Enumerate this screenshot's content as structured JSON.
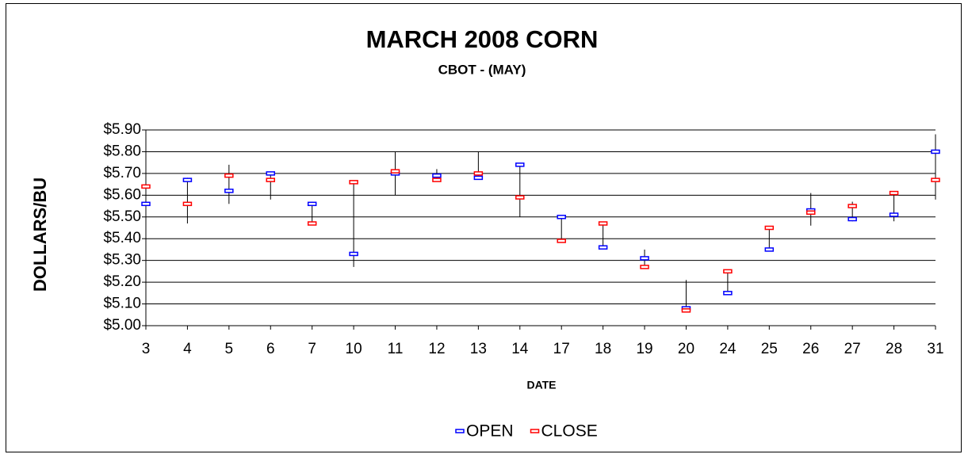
{
  "chart_data": {
    "type": "hloc",
    "title": "MARCH 2008 CORN",
    "subtitle": "CBOT - (MAY)",
    "y_label": "DOLLARS/BU",
    "x_label": "DATE",
    "categories": [
      "3",
      "4",
      "5",
      "6",
      "7",
      "10",
      "11",
      "12",
      "13",
      "14",
      "17",
      "18",
      "19",
      "20",
      "24",
      "25",
      "26",
      "27",
      "28",
      "31"
    ],
    "series": [
      {
        "name": "OPEN",
        "color": "#0000ff",
        "values": [
          5.56,
          5.67,
          5.62,
          5.7,
          5.56,
          5.33,
          5.7,
          5.69,
          5.68,
          5.74,
          5.5,
          5.36,
          5.31,
          5.08,
          5.15,
          5.35,
          5.53,
          5.49,
          5.51,
          5.8
        ]
      },
      {
        "name": "CLOSE",
        "color": "#ff0000",
        "values": [
          5.64,
          5.56,
          5.69,
          5.67,
          5.47,
          5.66,
          5.71,
          5.67,
          5.7,
          5.59,
          5.39,
          5.47,
          5.27,
          5.07,
          5.25,
          5.45,
          5.52,
          5.55,
          5.61,
          5.67
        ]
      }
    ],
    "high": [
      5.64,
      5.68,
      5.74,
      5.7,
      5.57,
      5.66,
      5.8,
      5.72,
      5.8,
      5.74,
      5.5,
      5.47,
      5.35,
      5.21,
      5.25,
      5.45,
      5.61,
      5.57,
      5.61,
      5.88
    ],
    "low": [
      5.56,
      5.47,
      5.56,
      5.58,
      5.47,
      5.27,
      5.6,
      5.67,
      5.68,
      5.5,
      5.39,
      5.36,
      5.27,
      5.07,
      5.15,
      5.35,
      5.46,
      5.48,
      5.48,
      5.58
    ],
    "ylim": [
      5.0,
      5.9
    ],
    "yticks": [
      {
        "value": 5.0,
        "label": "$5.00"
      },
      {
        "value": 5.1,
        "label": "$5.10"
      },
      {
        "value": 5.2,
        "label": "$5.20"
      },
      {
        "value": 5.3,
        "label": "$5.30"
      },
      {
        "value": 5.4,
        "label": "$5.40"
      },
      {
        "value": 5.5,
        "label": "$5.50"
      },
      {
        "value": 5.6,
        "label": "$5.60"
      },
      {
        "value": 5.7,
        "label": "$5.70"
      },
      {
        "value": 5.8,
        "label": "$5.80"
      },
      {
        "value": 5.9,
        "label": "$5.90"
      }
    ],
    "grid": true,
    "legend": "bottom"
  }
}
